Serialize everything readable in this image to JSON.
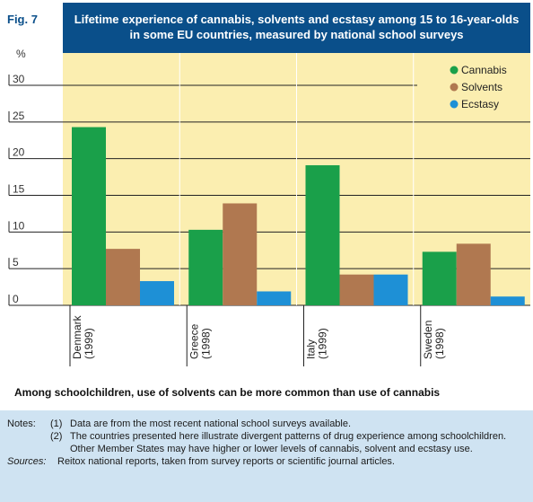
{
  "figure": {
    "label": "Fig. 7",
    "title": "Lifetime experience of cannabis, solvents and ecstasy among 15 to 16-year-olds in some EU countries, measured by national school surveys",
    "subtitle": "Among schoolchildren, use of solvents can be more common than use of cannabis"
  },
  "colors": {
    "plot_background": "#fbeeb0",
    "title_background": "#0a4f8a",
    "notes_background": "#cfe3f2",
    "Cannabis": "#1aa04a",
    "Solvents": "#b07850",
    "Ecstasy": "#1e90d6"
  },
  "chart_data": {
    "type": "bar",
    "ylabel": "%",
    "ylim": [
      0,
      30
    ],
    "yticks": [
      0,
      5,
      10,
      15,
      20,
      25,
      30
    ],
    "grid": true,
    "legend_position": "top-right",
    "categories": [
      {
        "country": "Denmark",
        "year": "(1999)"
      },
      {
        "country": "Greece",
        "year": "(1998)"
      },
      {
        "country": "Italy",
        "year": "(1999)"
      },
      {
        "country": "Sweden",
        "year": "(1998)"
      }
    ],
    "series": [
      {
        "name": "Cannabis",
        "values": [
          24.3,
          10.3,
          19.1,
          7.3
        ]
      },
      {
        "name": "Solvents",
        "values": [
          7.7,
          13.9,
          4.2,
          8.4
        ]
      },
      {
        "name": "Ecstasy",
        "values": [
          3.3,
          1.9,
          4.2,
          1.2
        ]
      }
    ]
  },
  "notes": {
    "heading": "Notes:",
    "items": [
      {
        "num": "(1)",
        "text": "Data are from the most recent national school surveys available."
      },
      {
        "num": "(2)",
        "text": "The countries presented here illustrate divergent patterns of drug experience among schoolchildren. Other Member States may have higher or lower levels of cannabis, solvent and ecstasy use."
      }
    ],
    "sources_heading": "Sources:",
    "sources_text": "Reitox national reports, taken from survey reports or scientific journal articles."
  }
}
